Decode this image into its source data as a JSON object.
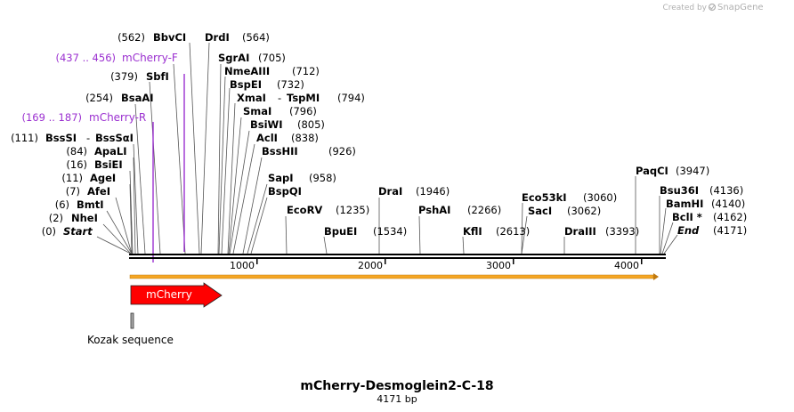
{
  "watermark": "Created by",
  "watermark_brand": "SnapGene",
  "plasmid": {
    "name": "mCherry-Desmoglein2-C-18",
    "length": "4171 bp"
  },
  "ticks": [
    "1000",
    "2000",
    "3000",
    "4000"
  ],
  "features": {
    "mcherry": "mCherry",
    "kozak": "Kozak sequence"
  },
  "labels": {
    "bbvci_pos": "(562)",
    "bbvci": "BbvCI",
    "drdi": "DrdI",
    "drdi_pos": "(564)",
    "mcherryf_pos": "(437 .. 456)",
    "mcherryf": "mCherry-F",
    "sgrai": "SgrAI",
    "sgrai_pos": "(705)",
    "sbfi_pos": "(379)",
    "sbfi": "SbfI",
    "nmeaiii": "NmeAIII",
    "nmeaiii_pos": "(712)",
    "bspei": "BspEI",
    "bspei_pos": "(732)",
    "bsaai_pos": "(254)",
    "bsaai": "BsaAI",
    "xmai": "XmaI",
    "tspmi_sep": "-",
    "tspmi": "TspMI",
    "tspmi_pos": "(794)",
    "smai": "SmaI",
    "smai_pos": "(796)",
    "mcherryr_pos": "(169 .. 187)",
    "mcherryr": "mCherry-R",
    "bsiwi": "BsiWI",
    "bsiwi_pos": "(805)",
    "bsssi_pos": "(111)",
    "bsssi": "BssSI",
    "bsssai_sep": "-",
    "bsssai": "BssSαI",
    "acli": "AclI",
    "acli_pos": "(838)",
    "apali_pos": "(84)",
    "apali": "ApaLI",
    "bsshii": "BssHII",
    "bsshii_pos": "(926)",
    "bsiei_pos": "(16)",
    "bsiei": "BsiEI",
    "agei_pos": "(11)",
    "agei": "AgeI",
    "sapi": "SapI",
    "sapi_pos": "(958)",
    "afei_pos": "(7)",
    "afei": "AfeI",
    "bspqi": "BspQI",
    "drai": "DraI",
    "drai_pos": "(1946)",
    "bmti_pos": "(6)",
    "bmti": "BmtI",
    "ecorv": "EcoRV",
    "ecorv_pos": "(1235)",
    "pshai": "PshAI",
    "pshai_pos": "(2266)",
    "nhei_pos": "(2)",
    "nhei": "NheI",
    "start_pos": "(0)",
    "start": "Start",
    "bpuei": "BpuEI",
    "bpuei_pos": "(1534)",
    "kfli": "KflI",
    "kfli_pos": "(2613)",
    "eco53ki": "Eco53kI",
    "eco53ki_pos": "(3060)",
    "saci": "SacI",
    "saci_pos": "(3062)",
    "draiii": "DraIII",
    "draiii_pos": "(3393)",
    "paqci": "PaqCI",
    "paqci_pos": "(3947)",
    "bsu36i": "Bsu36I",
    "bsu36i_pos": "(4136)",
    "bamhi": "BamHI",
    "bamhi_pos": "(4140)",
    "bcli": "BclI *",
    "bcli_pos": "(4162)",
    "end": "End",
    "end_pos": "(4171)"
  },
  "colors": {
    "primer": "#9b30d0",
    "mcherry": "#ff0000",
    "orf": "#f5a623"
  }
}
